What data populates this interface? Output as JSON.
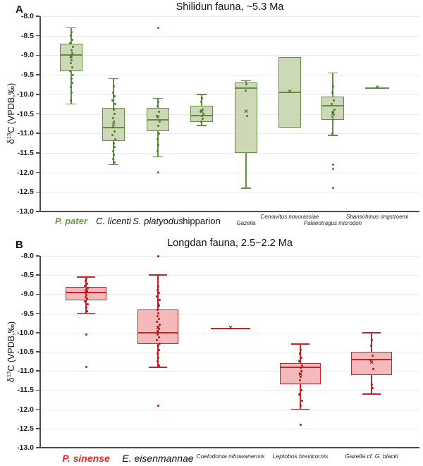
{
  "chart_data": [
    {
      "type": "box",
      "panel_letter": "A",
      "title": "Shilidun fauna, ~5.3 Ma",
      "ylabel": {
        "prefix": "δ",
        "sup": "13",
        "suffix": "C (VPDB,‰)"
      },
      "ylim": [
        -13.0,
        -8.0
      ],
      "yticks": [
        -8.0,
        -8.5,
        -9.0,
        -9.5,
        -10.0,
        -10.5,
        -11.0,
        -11.5,
        -12.0,
        -12.5,
        -13.0
      ],
      "ytick_labels": [
        "-8.0",
        "-8.5",
        "-9.0",
        "-9.5",
        "-10.0",
        "-10.5",
        "-11.0",
        "-11.5",
        "-12.0",
        "-12.5",
        "-13.0"
      ],
      "grid": true,
      "legend": "none",
      "colors": {
        "box_fill": "#cdd9b6",
        "box_stroke": "#60903f",
        "point": "#4a7a31",
        "mean": "#456f2a",
        "label_accent": "#6b9649"
      },
      "groups": [
        {
          "label": "P. pater",
          "label_style": "accent",
          "label_row": "main",
          "x_center": 101,
          "q1": -9.4,
          "median": -9.0,
          "q3": -8.7,
          "mean": -9.05,
          "whisker_low": -10.25,
          "whisker_high": -8.3,
          "points": [
            -8.4,
            -8.5,
            -8.6,
            -8.7,
            -8.78,
            -8.88,
            -8.95,
            -9.05,
            -9.12,
            -9.2,
            -9.3,
            -9.4,
            -9.5,
            -9.6,
            -9.7,
            -9.82,
            -9.95,
            -10.15
          ],
          "outliers": []
        },
        {
          "label": "C. licenti",
          "label_style": "italic",
          "label_row": "main",
          "x_center": 161,
          "q1": -11.2,
          "median": -10.85,
          "q3": -10.35,
          "mean": -10.8,
          "whisker_low": -11.8,
          "whisker_high": -9.6,
          "points": [
            -9.8,
            -9.95,
            -10.05,
            -10.15,
            -10.25,
            -10.4,
            -10.5,
            -10.6,
            -10.7,
            -10.85,
            -10.95,
            -11.05,
            -11.15,
            -11.25,
            -11.35,
            -11.45,
            -11.55,
            -11.65,
            -11.75
          ],
          "outliers": []
        },
        {
          "label": "S. platyodus",
          "label_style": "italic",
          "label_row": "main",
          "x_center": 224,
          "q1": -10.95,
          "median": -10.65,
          "q3": -10.35,
          "mean": -10.6,
          "whisker_low": -11.6,
          "whisker_high": -10.1,
          "points": [
            -10.2,
            -10.3,
            -10.45,
            -10.55,
            -10.7,
            -10.8,
            -11.0,
            -11.15,
            -11.3,
            -11.45
          ],
          "outliers": [
            -8.3,
            -12.0
          ]
        },
        {
          "label": "hipparion",
          "label_style": "plain",
          "label_row": "main",
          "x_center": 286,
          "q1": -10.7,
          "median": -10.55,
          "q3": -10.3,
          "mean": -10.45,
          "whisker_low": -10.8,
          "whisker_high": -10.0,
          "points": [
            -10.1,
            -10.2,
            -10.4,
            -10.45,
            -10.5,
            -10.55,
            -10.62,
            -10.7
          ],
          "outliers": []
        },
        {
          "label": "Gazella",
          "label_style": "small",
          "label_row": "lower",
          "x_center": 349,
          "q1": -11.5,
          "median": -9.85,
          "q3": -9.7,
          "mean": -10.45,
          "whisker_low": -12.4,
          "whisker_high": -9.65,
          "points": [
            -9.75,
            -9.9,
            -10.55
          ],
          "outliers": []
        },
        {
          "label": "Cervavitus novorassiae",
          "label_style": "small",
          "label_row": "upper",
          "x_center": 411,
          "q1": -10.85,
          "median": -9.95,
          "q3": -9.05,
          "mean": -9.95,
          "whisker_low": -10.85,
          "whisker_high": -9.05,
          "points": [],
          "outliers": []
        },
        {
          "label": "Palaeotragus microdon",
          "label_style": "small",
          "label_row": "lower",
          "x_center": 472,
          "q1": -10.65,
          "median": -10.3,
          "q3": -10.05,
          "mean": -10.5,
          "whisker_low": -11.05,
          "whisker_high": -9.45,
          "points": [
            -9.8,
            -9.95,
            -10.15,
            -10.25,
            -10.4,
            -10.45,
            -10.52,
            -10.58,
            -10.65,
            -11.0
          ],
          "outliers": [
            -11.8,
            -11.9,
            -12.4
          ]
        },
        {
          "label": "Shansirhinus ringstroemi",
          "label_style": "small",
          "label_row": "upper",
          "x_center": 535,
          "line_only": true,
          "median": -9.85,
          "mean": -9.85,
          "points": [],
          "outliers": []
        }
      ]
    },
    {
      "type": "box",
      "panel_letter": "B",
      "title": "Longdan fauna, 2.5−2.2 Ma",
      "ylabel": {
        "prefix": "δ",
        "sup": "13",
        "suffix": "C (VPDB,‰)"
      },
      "ylim": [
        -13.0,
        -8.0
      ],
      "yticks": [
        -8.0,
        -8.5,
        -9.0,
        -9.5,
        -10.0,
        -10.5,
        -11.0,
        -11.5,
        -12.0,
        -12.5,
        -13.0
      ],
      "ytick_labels": [
        "-8.0",
        "-8.5",
        "-9.0",
        "-9.5",
        "-10.0",
        "-10.5",
        "-11.0",
        "-11.5",
        "-12.0",
        "-12.5",
        "-13.0"
      ],
      "grid": true,
      "legend": "none",
      "colors": {
        "box_fill": "#f4b9bb",
        "box_stroke": "#ce2127",
        "point": "#b2141a",
        "mean": "#a01014",
        "label_accent": "#e62a28"
      },
      "groups": [
        {
          "label": "P. sinense",
          "label_style": "accent",
          "label_row": "main",
          "x_center": 122,
          "q1": -9.15,
          "median": -8.95,
          "q3": -8.8,
          "mean": -8.95,
          "whisker_low": -9.5,
          "whisker_high": -8.55,
          "points": [
            -8.6,
            -8.66,
            -8.72,
            -8.78,
            -8.83,
            -8.88,
            -8.92,
            -8.97,
            -9.02,
            -9.07,
            -9.12,
            -9.18,
            -9.25,
            -9.35,
            -9.45
          ],
          "outliers": [
            -10.05,
            -10.9
          ]
        },
        {
          "label": "E. eisenmannae",
          "label_style": "italic",
          "label_row": "main",
          "x_center": 224,
          "q1": -10.3,
          "median": -10.0,
          "q3": -9.4,
          "mean": -9.9,
          "whisker_low": -10.9,
          "whisker_high": -8.5,
          "points": [
            -8.8,
            -8.9,
            -8.97,
            -9.05,
            -9.15,
            -9.25,
            -9.3,
            -9.4,
            -9.5,
            -9.58,
            -9.65,
            -9.72,
            -9.8,
            -9.85,
            -9.9,
            -9.95,
            -10.0,
            -10.05,
            -10.12,
            -10.2,
            -10.28,
            -10.35,
            -10.45,
            -10.55,
            -10.65,
            -10.75,
            -10.85
          ],
          "outliers": [
            -8.0,
            -11.9
          ]
        },
        {
          "label": "Coelodonta nihowanensis",
          "label_style": "small",
          "label_row": "main",
          "x_center": 327,
          "line_only": true,
          "median": -9.9,
          "mean": -9.9,
          "points": [],
          "outliers": []
        },
        {
          "label": "Leptobos brevicornis",
          "label_style": "small",
          "label_row": "main",
          "x_center": 426,
          "q1": -11.35,
          "median": -10.9,
          "q3": -10.8,
          "mean": -11.1,
          "whisker_low": -12.0,
          "whisker_high": -10.3,
          "points": [
            -10.45,
            -10.55,
            -10.65,
            -10.75,
            -10.85,
            -10.92,
            -11.0,
            -11.08,
            -11.15,
            -11.25,
            -11.5,
            -11.62,
            -11.78,
            -11.9
          ],
          "outliers": [
            -12.4
          ]
        },
        {
          "label": "Gazella cf. G. blacki",
          "label_style": "small",
          "label_row": "main",
          "x_center": 527,
          "q1": -11.1,
          "median": -10.7,
          "q3": -10.5,
          "mean": -10.8,
          "whisker_low": -11.6,
          "whisker_high": -10.0,
          "points": [
            -10.2,
            -10.35,
            -10.6,
            -10.72,
            -10.95,
            -11.35,
            -11.45
          ],
          "outliers": []
        }
      ]
    }
  ]
}
